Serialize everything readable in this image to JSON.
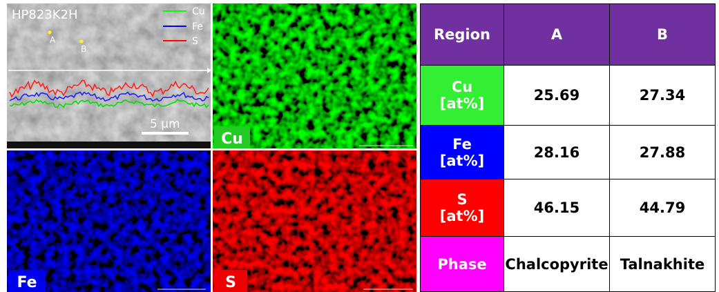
{
  "sem_panel": {
    "title": "HP823K2H",
    "legend": [
      "Cu",
      "Fe",
      "S"
    ],
    "points": [
      "A",
      "B"
    ],
    "scale_bar": "5 μm"
  },
  "maps": [
    {
      "label": "Cu"
    },
    {
      "label": "Fe"
    },
    {
      "label": "S"
    }
  ],
  "table": {
    "header": [
      "Region",
      "A",
      "B"
    ],
    "rows": [
      {
        "label": [
          "Cu",
          "[at%]"
        ],
        "cells": [
          25.69,
          27.34
        ]
      },
      {
        "label": [
          "Fe",
          "[at%]"
        ],
        "cells": [
          28.16,
          27.88
        ]
      },
      {
        "label": [
          "S",
          "[at%]"
        ],
        "cells": [
          46.15,
          44.79
        ]
      },
      {
        "label": [
          "Phase"
        ],
        "cells": [
          "Chalcopyrite",
          "Talnakhite"
        ]
      }
    ]
  }
}
